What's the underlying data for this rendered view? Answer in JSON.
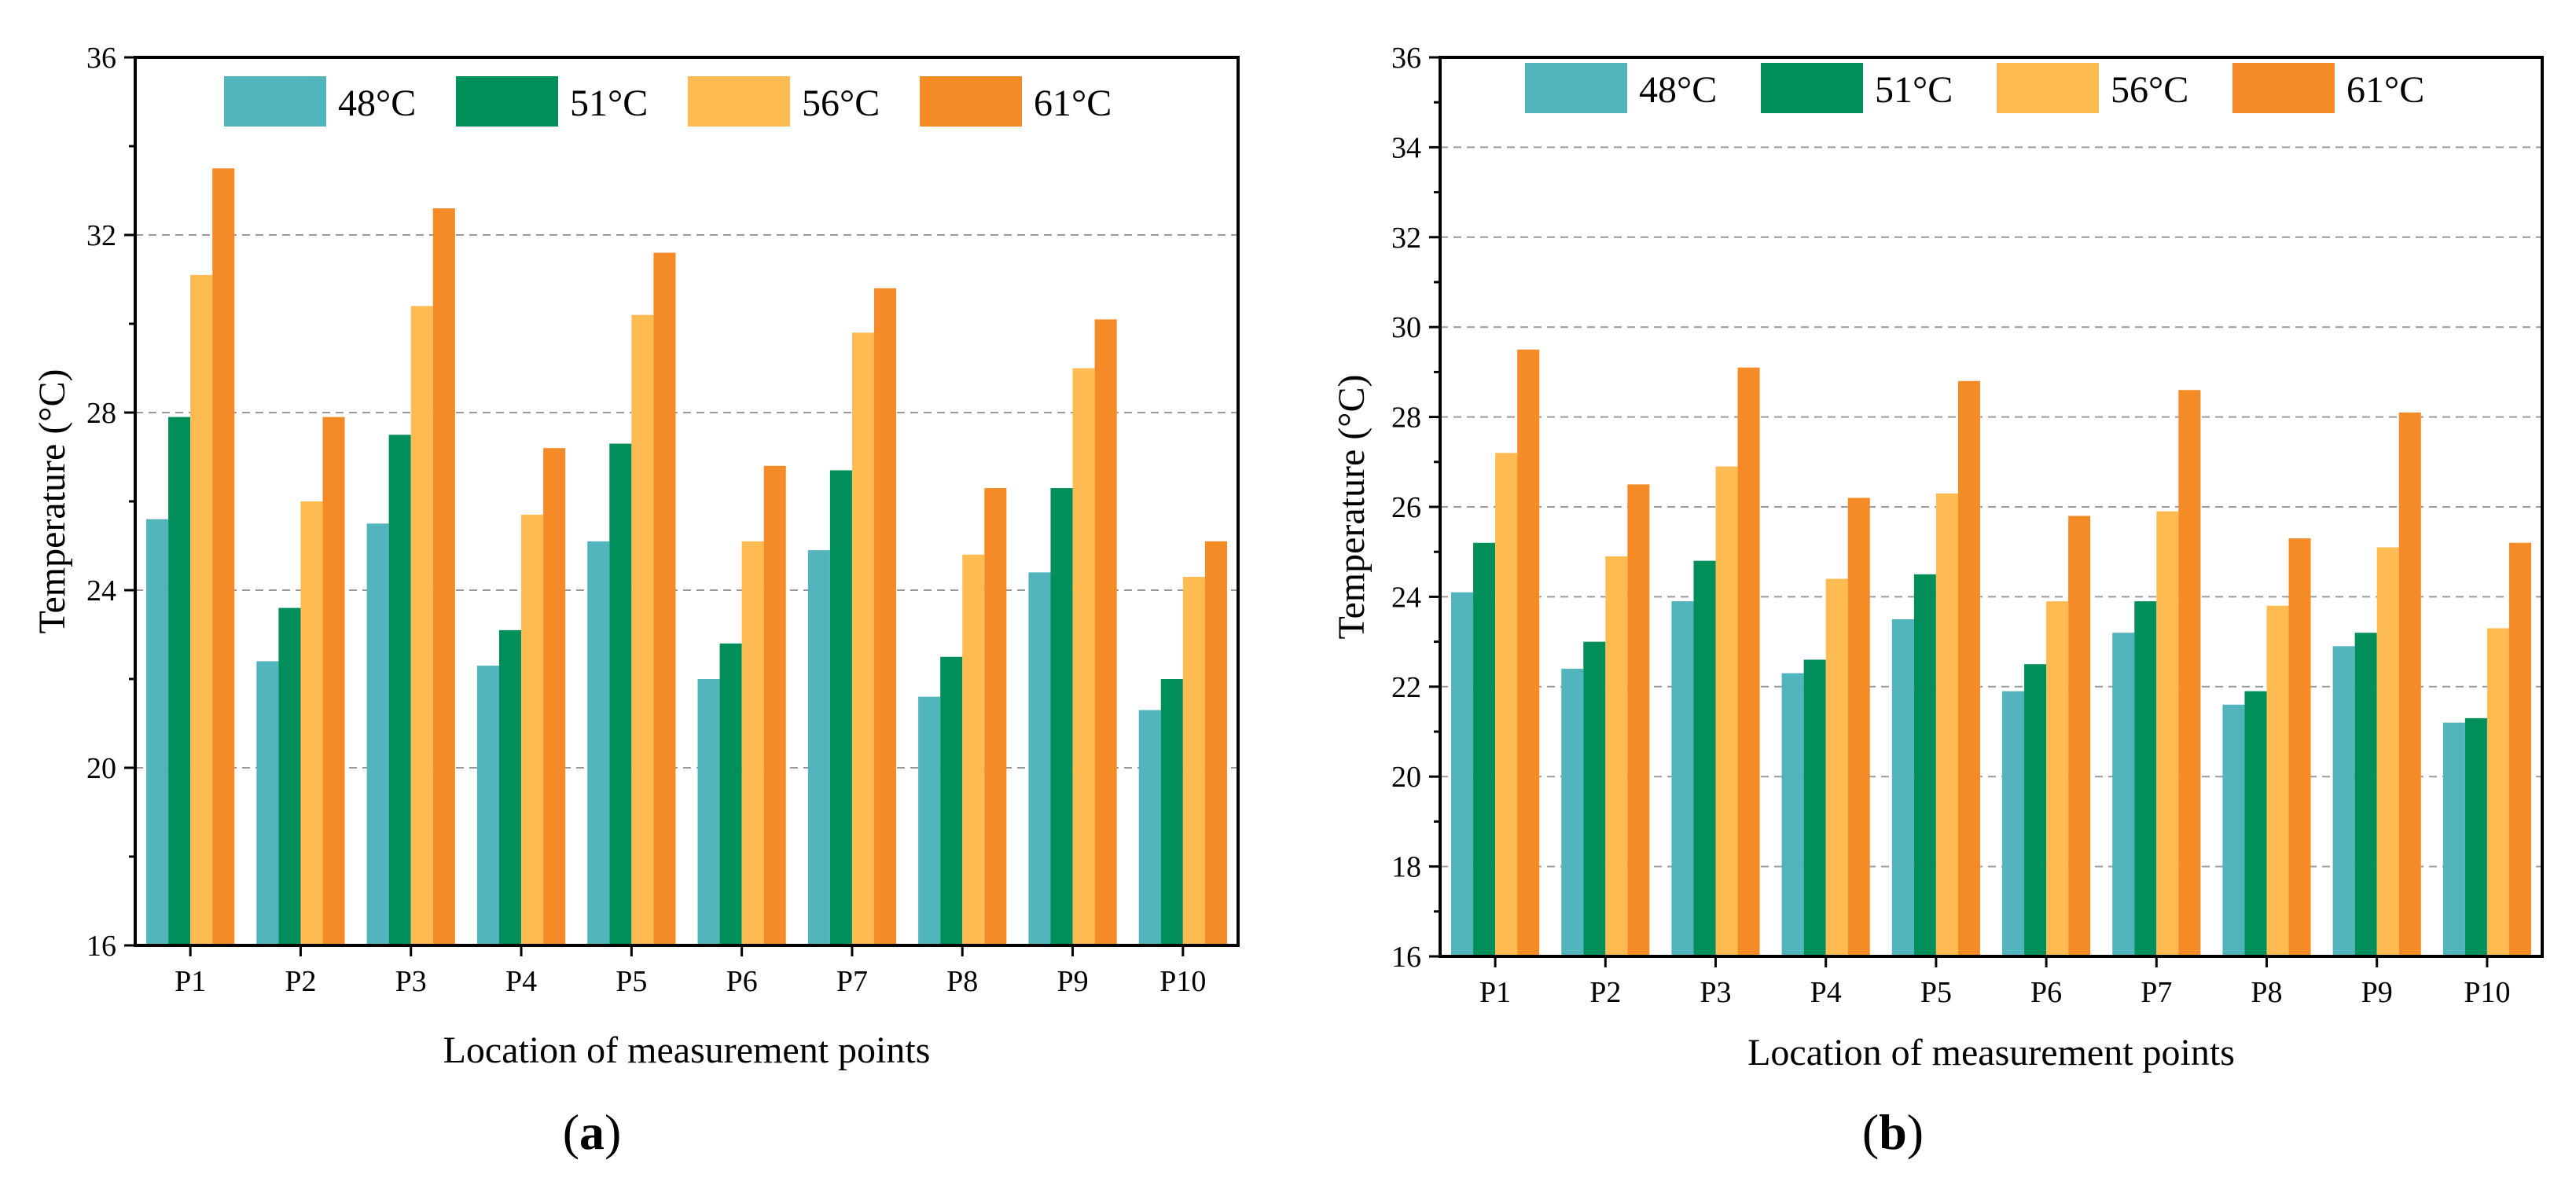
{
  "chart_data": [
    {
      "type": "bar",
      "panel_label": "a",
      "categories": [
        "P1",
        "P2",
        "P3",
        "P4",
        "P5",
        "P6",
        "P7",
        "P8",
        "P9",
        "P10"
      ],
      "series": [
        {
          "name": "48°C",
          "color": "#52b4bd",
          "values": [
            25.6,
            22.4,
            25.5,
            22.3,
            25.1,
            22.0,
            24.9,
            21.6,
            24.4,
            21.3
          ]
        },
        {
          "name": "51°C",
          "color": "#008f5a",
          "values": [
            27.9,
            23.6,
            27.5,
            23.1,
            27.3,
            22.8,
            26.7,
            22.5,
            26.3,
            22.0
          ]
        },
        {
          "name": "56°C",
          "color": "#fdbb52",
          "values": [
            31.1,
            26.0,
            30.4,
            25.7,
            30.2,
            25.1,
            29.8,
            24.8,
            29.0,
            24.3
          ]
        },
        {
          "name": "61°C",
          "color": "#f58b27",
          "values": [
            33.5,
            27.9,
            32.6,
            27.2,
            31.6,
            26.8,
            30.8,
            26.3,
            30.1,
            25.1
          ]
        }
      ],
      "xlabel": "Location of measurement points",
      "ylabel": "Temperature (°C)",
      "ylim": [
        16,
        36
      ],
      "yticks": [
        "16",
        "20",
        "24",
        "28",
        "32",
        "36"
      ],
      "grid": "horizontal dashed",
      "legend_position": "top"
    },
    {
      "type": "bar",
      "panel_label": "b",
      "categories": [
        "P1",
        "P2",
        "P3",
        "P4",
        "P5",
        "P6",
        "P7",
        "P8",
        "P9",
        "P10"
      ],
      "series": [
        {
          "name": "48°C",
          "color": "#52b4bd",
          "values": [
            24.1,
            22.4,
            23.9,
            22.3,
            23.5,
            21.9,
            23.2,
            21.6,
            22.9,
            21.2
          ]
        },
        {
          "name": "51°C",
          "color": "#008f5a",
          "values": [
            25.2,
            23.0,
            24.8,
            22.6,
            24.5,
            22.5,
            23.9,
            21.9,
            23.2,
            21.3
          ]
        },
        {
          "name": "56°C",
          "color": "#fdbb52",
          "values": [
            27.2,
            24.9,
            26.9,
            24.4,
            26.3,
            23.9,
            25.9,
            23.8,
            25.1,
            23.3
          ]
        },
        {
          "name": "61°C",
          "color": "#f58b27",
          "values": [
            29.5,
            26.5,
            29.1,
            26.2,
            28.8,
            25.8,
            28.6,
            25.3,
            28.1,
            25.2
          ]
        }
      ],
      "xlabel": "Location of measurement points",
      "ylabel": "Temperature (°C)",
      "ylim": [
        16,
        36
      ],
      "yticks": [
        "16",
        "18",
        "20",
        "22",
        "24",
        "26",
        "28",
        "30",
        "32",
        "34",
        "36"
      ],
      "grid": "horizontal dashed",
      "legend_position": "top"
    }
  ]
}
